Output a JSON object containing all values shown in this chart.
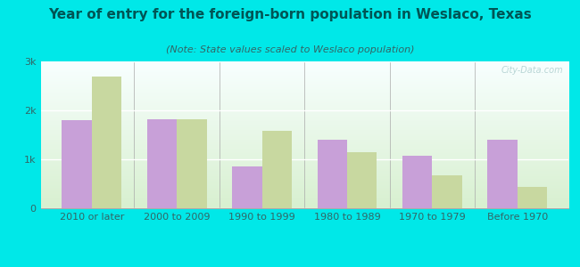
{
  "title": "Year of entry for the foreign-born population in Weslaco, Texas",
  "subtitle": "(Note: State values scaled to Weslaco population)",
  "categories": [
    "2010 or later",
    "2000 to 2009",
    "1990 to 1999",
    "1980 to 1989",
    "1970 to 1979",
    "Before 1970"
  ],
  "weslaco": [
    1800,
    1820,
    850,
    1400,
    1080,
    1400
  ],
  "texas": [
    2700,
    1820,
    1580,
    1150,
    680,
    430
  ],
  "weslaco_color": "#c8a0d8",
  "texas_color": "#c8d8a0",
  "background_color": "#00e8e8",
  "plot_bg_top": "#f8ffff",
  "plot_bg_bottom": "#d8f0d0",
  "ylim": [
    0,
    3000
  ],
  "yticks": [
    0,
    1000,
    2000,
    3000
  ],
  "ytick_labels": [
    "0",
    "1k",
    "2k",
    "3k"
  ],
  "bar_width": 0.35,
  "title_fontsize": 11,
  "subtitle_fontsize": 8,
  "legend_fontsize": 9,
  "tick_fontsize": 8
}
